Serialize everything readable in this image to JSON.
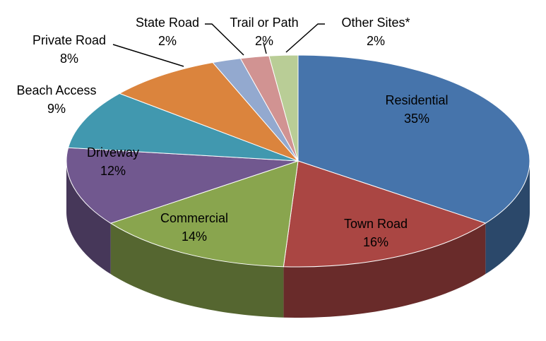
{
  "chart_data": {
    "type": "pie",
    "style": "3d",
    "start_angle": "top, clockwise",
    "title": "",
    "legend": "none",
    "slices": [
      {
        "label": "Residential",
        "value": 35,
        "display": "35%",
        "color": "#4674AB"
      },
      {
        "label": "Town Road",
        "value": 16,
        "display": "16%",
        "color": "#AA4643"
      },
      {
        "label": "Commercial",
        "value": 14,
        "display": "14%",
        "color": "#89A54E"
      },
      {
        "label": "Driveway",
        "value": 12,
        "display": "12%",
        "color": "#71588F"
      },
      {
        "label": "Beach Access",
        "value": 9,
        "display": "9%",
        "color": "#4198AF"
      },
      {
        "label": "Private Road",
        "value": 8,
        "display": "8%",
        "color": "#DB843D"
      },
      {
        "label": "State Road",
        "value": 2,
        "display": "2%",
        "color": "#93A9CF"
      },
      {
        "label": "Trail or Path",
        "value": 2,
        "display": "2%",
        "color": "#D19392"
      },
      {
        "label": "Other Sites*",
        "value": 2,
        "display": "2%",
        "color": "#B9CD96"
      }
    ]
  }
}
